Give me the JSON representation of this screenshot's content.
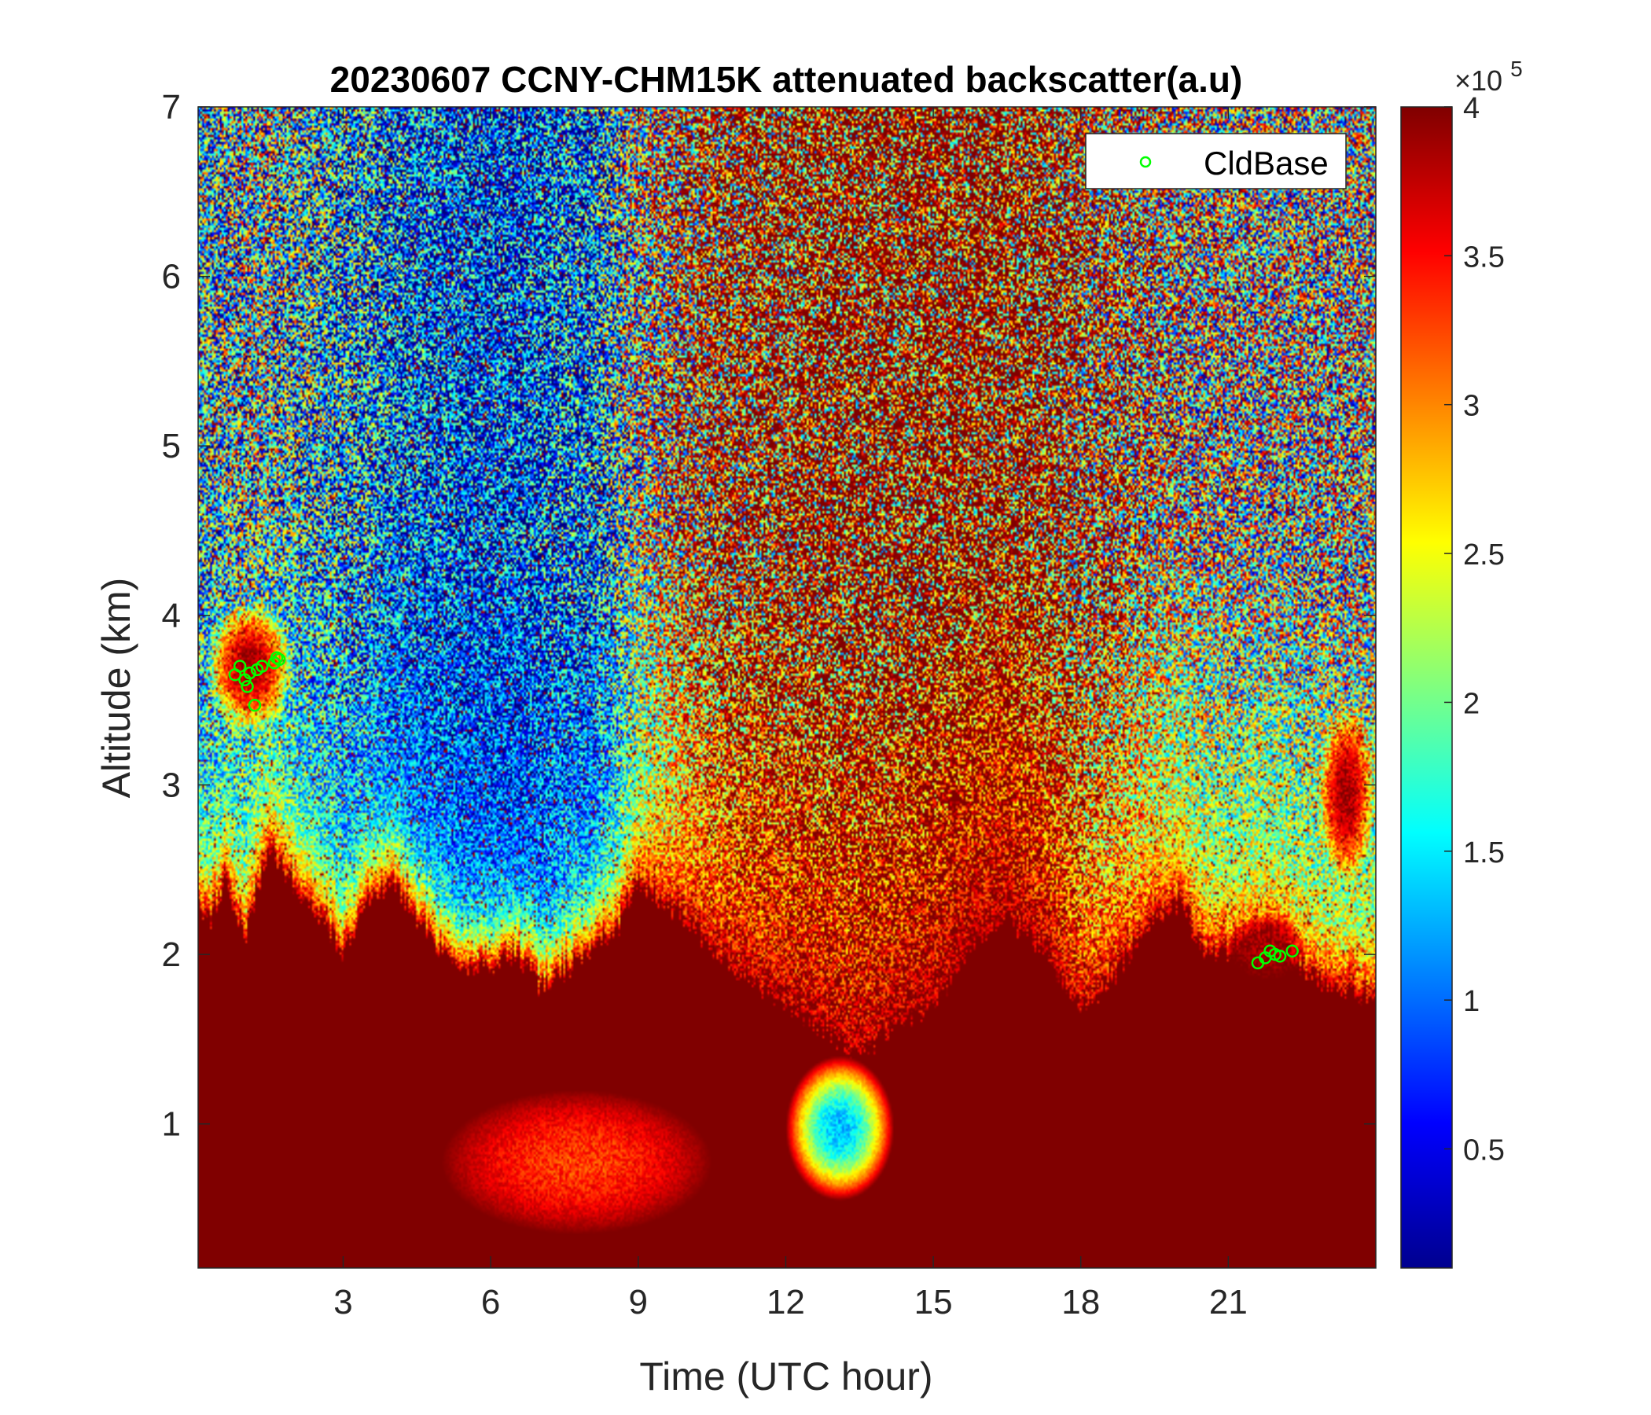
{
  "chart_data": {
    "type": "heatmap",
    "title": "20230607 CCNY-CHM15K attenuated backscatter(a.u)",
    "xlabel": "Time (UTC hour)",
    "ylabel": "Altitude (km)",
    "xlim": [
      0.05,
      24.0
    ],
    "ylim": [
      0.15,
      7.0
    ],
    "xticks": [
      3,
      6,
      9,
      12,
      15,
      18,
      21
    ],
    "xtick_labels": [
      "3",
      "6",
      "9",
      "12",
      "15",
      "18",
      "21"
    ],
    "yticks": [
      1,
      2,
      3,
      4,
      5,
      6,
      7
    ],
    "ytick_labels": [
      "1",
      "2",
      "3",
      "4",
      "5",
      "6",
      "7"
    ],
    "colorbar": {
      "colormap": "jet",
      "range": [
        0.1,
        4.0
      ],
      "multiplier_base": "×10",
      "multiplier_exp": "5",
      "ticks": [
        0.5,
        1,
        1.5,
        2,
        2.5,
        3,
        3.5,
        4
      ],
      "tick_labels": [
        "0.5",
        "1",
        "1.5",
        "2",
        "2.5",
        "3",
        "3.5",
        "4"
      ]
    },
    "legend": {
      "label": "CldBase",
      "position": "top-right",
      "color": "#00ff00"
    },
    "profile": {
      "hours": [
        0.0,
        0.3,
        0.6,
        1.0,
        1.5,
        2.0,
        2.5,
        3.0,
        3.5,
        4.0,
        4.5,
        5.0,
        5.5,
        6.0,
        6.5,
        7.0,
        7.5,
        8.0,
        8.5,
        9.0,
        9.5,
        10.0,
        10.5,
        11.0,
        11.5,
        12.0,
        12.5,
        13.0,
        13.5,
        14.0,
        14.5,
        15.0,
        15.5,
        16.0,
        16.5,
        17.0,
        17.5,
        18.0,
        18.5,
        19.0,
        19.5,
        20.0,
        20.5,
        21.0,
        21.5,
        22.0,
        22.5,
        23.0,
        23.5,
        24.0
      ],
      "top_km": [
        2.3,
        2.2,
        2.4,
        2.1,
        2.6,
        2.4,
        2.2,
        2.0,
        2.3,
        2.4,
        2.2,
        2.0,
        1.9,
        1.9,
        2.0,
        1.8,
        1.9,
        2.0,
        2.1,
        2.4,
        2.3,
        2.2,
        2.0,
        1.9,
        1.8,
        1.7,
        1.6,
        1.5,
        1.4,
        1.5,
        1.6,
        1.7,
        1.9,
        2.1,
        2.2,
        2.1,
        1.9,
        1.7,
        1.8,
        2.0,
        2.2,
        2.3,
        2.0,
        2.0,
        2.1,
        2.1,
        1.9,
        1.8,
        1.8,
        1.7
      ],
      "signal": [
        1.5,
        1.5,
        1.6,
        1.7,
        1.7,
        1.5,
        1.4,
        1.3,
        1.2,
        1.0,
        0.9,
        0.9,
        0.8,
        0.8,
        0.8,
        0.9,
        1.0,
        1.0,
        1.4,
        2.0,
        2.4,
        2.8,
        3.0,
        3.2,
        3.3,
        3.4,
        3.5,
        3.5,
        3.6,
        3.6,
        3.6,
        3.7,
        3.7,
        3.7,
        3.6,
        3.5,
        3.3,
        3.0,
        2.8,
        2.6,
        2.4,
        2.2,
        2.1,
        2.0,
        2.0,
        2.0,
        2.0,
        2.0,
        2.0,
        2.0
      ]
    },
    "features": [
      {
        "name": "cloud layer",
        "hours": [
          0.2,
          2.0
        ],
        "km": [
          3.3,
          4.1
        ],
        "value": 3.9
      },
      {
        "name": "cloud layer",
        "hours": [
          21.0,
          22.6
        ],
        "km": [
          1.85,
          2.25
        ],
        "value": 3.9
      },
      {
        "name": "cloud layer",
        "hours": [
          22.8,
          24.0
        ],
        "km": [
          2.4,
          3.5
        ],
        "value": 3.9
      },
      {
        "name": "low-signal pocket",
        "hours": [
          12.0,
          14.2
        ],
        "km": [
          0.55,
          1.4
        ],
        "value": 1.3
      },
      {
        "name": "reduced-signal plume",
        "hours": [
          5.0,
          10.5
        ],
        "km": [
          0.35,
          1.2
        ],
        "value": 3.3
      }
    ],
    "cldbase_points": [
      {
        "hour": 0.8,
        "km": 3.65
      },
      {
        "hour": 0.9,
        "km": 3.7
      },
      {
        "hour": 1.0,
        "km": 3.62
      },
      {
        "hour": 1.05,
        "km": 3.58
      },
      {
        "hour": 1.1,
        "km": 3.66
      },
      {
        "hour": 1.2,
        "km": 3.47
      },
      {
        "hour": 1.25,
        "km": 3.68
      },
      {
        "hour": 1.35,
        "km": 3.7
      },
      {
        "hour": 1.6,
        "km": 3.72
      },
      {
        "hour": 1.65,
        "km": 3.75
      },
      {
        "hour": 1.7,
        "km": 3.74
      },
      {
        "hour": 21.6,
        "km": 1.95
      },
      {
        "hour": 21.75,
        "km": 1.98
      },
      {
        "hour": 21.85,
        "km": 2.02
      },
      {
        "hour": 21.95,
        "km": 2.0
      },
      {
        "hour": 22.05,
        "km": 1.99
      },
      {
        "hour": 22.3,
        "km": 2.02
      }
    ]
  }
}
